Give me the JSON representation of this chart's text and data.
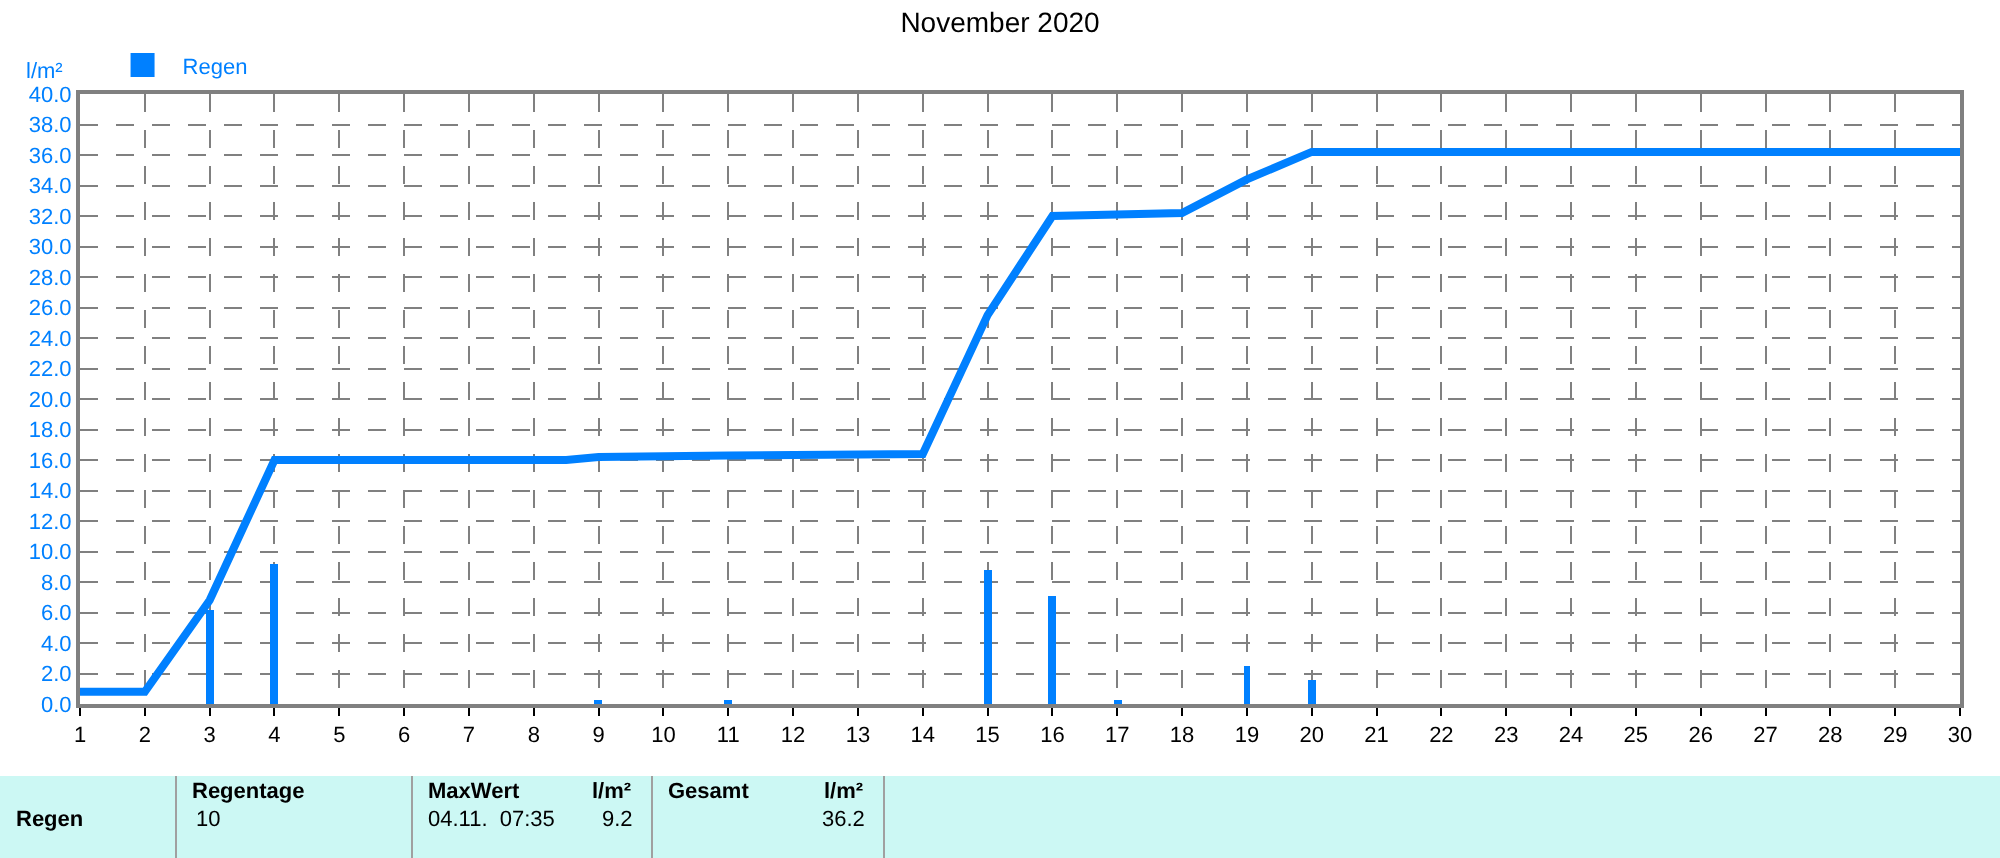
{
  "chart_data": {
    "type": "line",
    "title": "November 2020",
    "ylabel": "l/m²",
    "series": [
      {
        "name": "Regen",
        "type": "bar",
        "color": "#0080ff",
        "x": [
          3,
          4,
          9,
          11,
          15,
          16,
          17,
          19,
          20
        ],
        "values": [
          6.2,
          9.2,
          0.3,
          0.2,
          8.8,
          7.1,
          0.2,
          2.5,
          1.6
        ]
      },
      {
        "color": "#0080ff",
        "x": [
          1,
          2,
          3,
          4,
          8.5,
          9,
          11,
          14,
          15,
          16,
          18,
          19,
          20,
          30
        ],
        "values": [
          0.8,
          0.8,
          6.8,
          16.0,
          16.0,
          16.2,
          16.3,
          16.4,
          25.5,
          32.0,
          32.2,
          34.4,
          36.2,
          36.2
        ]
      }
    ],
    "xlim": [
      1,
      30
    ],
    "xticks": [
      1,
      2,
      3,
      4,
      5,
      6,
      7,
      8,
      9,
      10,
      11,
      12,
      13,
      14,
      15,
      16,
      17,
      18,
      19,
      20,
      21,
      22,
      23,
      24,
      25,
      26,
      27,
      28,
      29,
      30
    ],
    "ylim": [
      0,
      40
    ],
    "yticks": [
      {
        "value": 0,
        "label": "0.0"
      },
      {
        "value": 2,
        "label": "2.0"
      },
      {
        "value": 4,
        "label": "4.0"
      },
      {
        "value": 6,
        "label": "6.0"
      },
      {
        "value": 8,
        "label": "8.0"
      },
      {
        "value": 10,
        "label": "10.0"
      },
      {
        "value": 12,
        "label": "12.0"
      },
      {
        "value": 14,
        "label": "14.0"
      },
      {
        "value": 16,
        "label": "16.0"
      },
      {
        "value": 18,
        "label": "18.0"
      },
      {
        "value": 20,
        "label": "20.0"
      },
      {
        "value": 22,
        "label": "22.0"
      },
      {
        "value": 24,
        "label": "24.0"
      },
      {
        "value": 26,
        "label": "26.0"
      },
      {
        "value": 28,
        "label": "28.0"
      },
      {
        "value": 30,
        "label": "30.0"
      },
      {
        "value": 32,
        "label": "32.0"
      },
      {
        "value": 34,
        "label": "34.0"
      },
      {
        "value": 36,
        "label": "36.0"
      },
      {
        "value": 38,
        "label": "38.0"
      },
      {
        "value": 40,
        "label": "40.0"
      }
    ],
    "grid": true,
    "legend": "top left",
    "marker": "none",
    "line_style": "solid",
    "annotations": [
      "Regen",
      "Regentage",
      "10",
      "MaxWert",
      "l/m²",
      "04.11.  07:35",
      "9.2",
      "Gesamt",
      "l/m²",
      "36.2"
    ]
  }
}
